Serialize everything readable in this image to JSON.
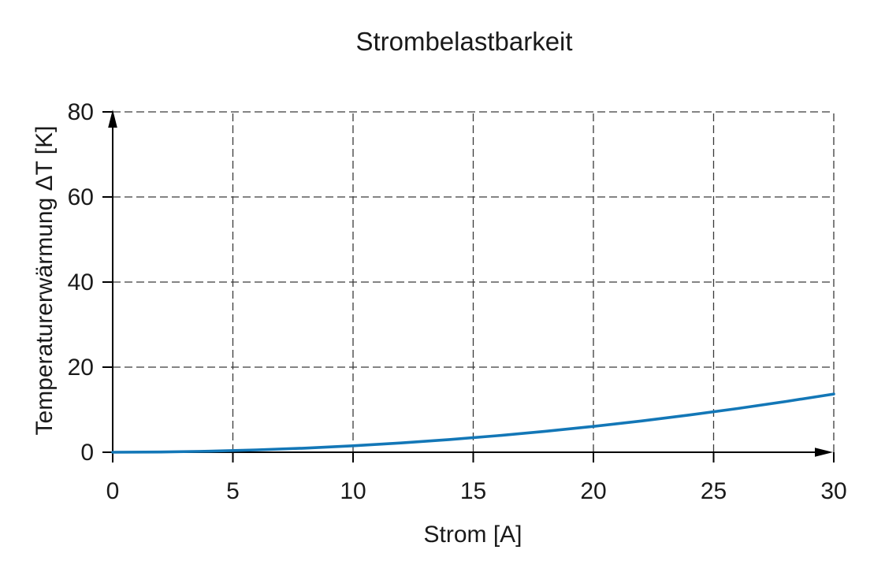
{
  "chart_data": {
    "type": "line",
    "title": "Strombelastbarkeit",
    "xlabel": "Strom [A]",
    "ylabel": "Temperaturerwärmung ΔT [K]",
    "xlim": [
      0,
      30
    ],
    "ylim": [
      0,
      80
    ],
    "x_ticks": [
      0,
      5,
      10,
      15,
      20,
      25,
      30
    ],
    "y_ticks": [
      0,
      20,
      40,
      60,
      80
    ],
    "grid": "dashed",
    "legend": "none",
    "colors": {
      "series": "#1377b7",
      "grid": "#3a3a3a",
      "axis": "#000000",
      "text": "#1a1a1a"
    },
    "series": [
      {
        "name": "Temperaturerwärmung ΔT",
        "color": "#1377b7",
        "x": [
          0,
          2,
          4,
          6,
          8,
          10,
          12,
          14,
          16,
          18,
          20,
          22,
          24,
          26,
          28,
          30
        ],
        "y": [
          0,
          0.06,
          0.24,
          0.55,
          0.97,
          1.52,
          2.19,
          2.98,
          3.89,
          4.92,
          6.08,
          7.36,
          8.76,
          10.28,
          11.92,
          13.68
        ]
      }
    ]
  }
}
